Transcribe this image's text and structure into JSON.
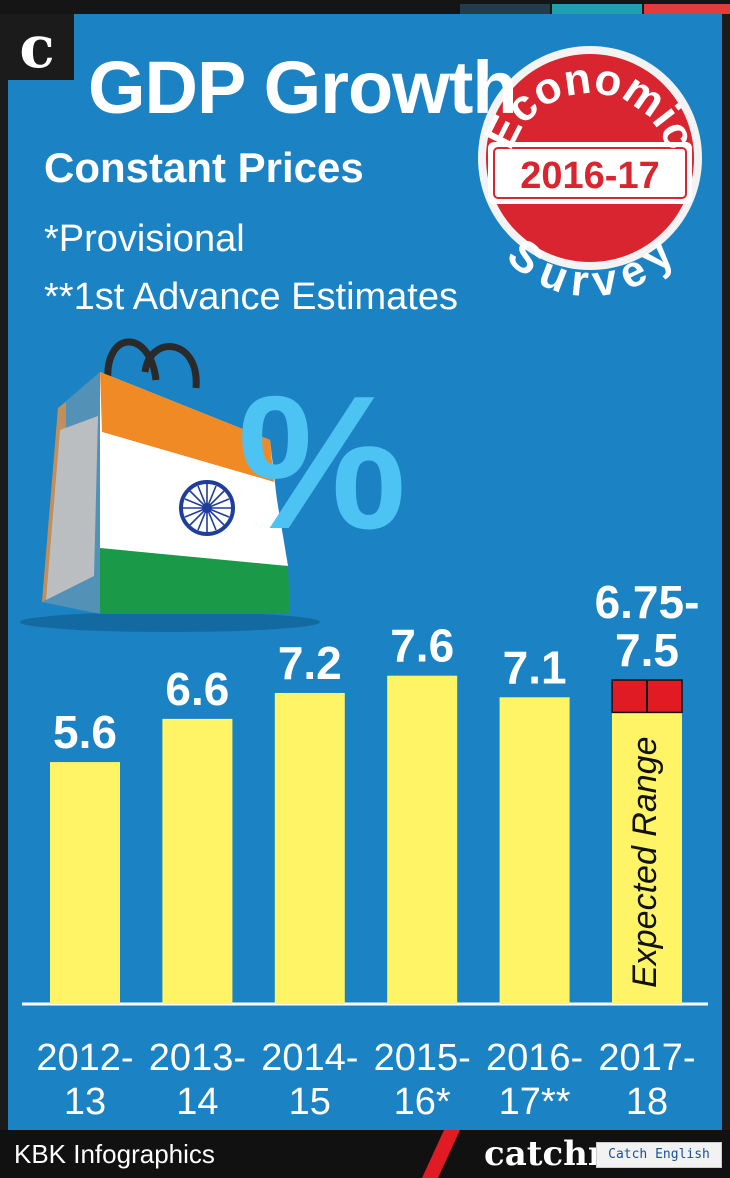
{
  "header": {
    "logo_letter": "c",
    "title": "GDP Growth",
    "subtitle": "Constant Prices",
    "notes": [
      "*Provisional",
      "**1st Advance Estimates"
    ]
  },
  "badge": {
    "top_text": "Economic",
    "year": "2016-17",
    "bottom_text": "Survey"
  },
  "illustration": {
    "icon": "india-flag-shopping-bag-icon",
    "symbol": "%"
  },
  "chart_data": {
    "type": "bar",
    "title": "GDP Growth",
    "subtitle": "Constant Prices",
    "xlabel": "",
    "ylabel": "",
    "grid": false,
    "categories": [
      [
        "2012-",
        "13"
      ],
      [
        "2013-",
        "14"
      ],
      [
        "2014-",
        "15"
      ],
      [
        "2015-",
        "16*"
      ],
      [
        "2016-",
        "17**"
      ],
      [
        "2017-",
        "18"
      ]
    ],
    "values": [
      5.6,
      6.6,
      7.2,
      7.6,
      7.1,
      7.5
    ],
    "value_labels": [
      "5.6",
      "6.6",
      "7.2",
      "7.6",
      "7.1",
      [
        "6.75-",
        "7.5"
      ]
    ],
    "range": {
      "category_index": 5,
      "low": 6.75,
      "high": 7.5,
      "label": "Expected Range"
    },
    "bar_color": "#fef465",
    "range_color": "#e01b24"
  },
  "footer": {
    "credit": "KBK Infographics",
    "brand": "catchnews",
    "watermark": "Catch English"
  },
  "colors": {
    "background": "#1b83c4",
    "text": "#ffffff",
    "percent": "#4cc3f2",
    "badge_red": "#d9252f"
  }
}
